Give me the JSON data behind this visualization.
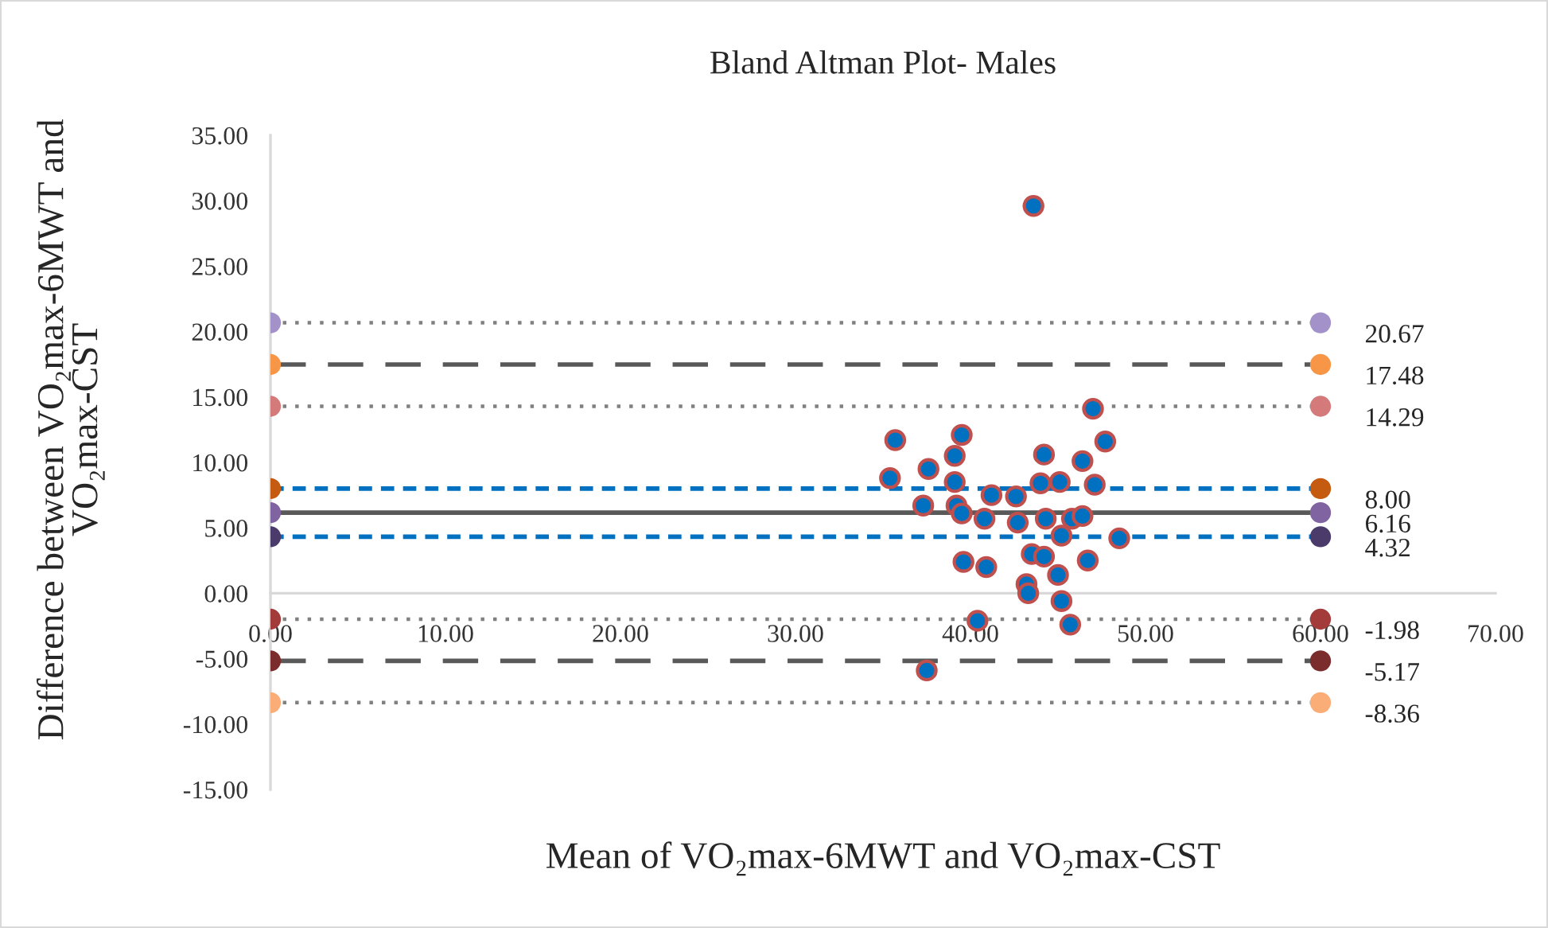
{
  "chart_data": {
    "type": "scatter",
    "title": "Bland Altman Plot- Males",
    "xlabel": "Mean of VO₂max-6MWT and VO₂max-CST",
    "ylabel": "Difference between VO₂max-6MWT and\nVO₂max-CST",
    "xlim": [
      0,
      70
    ],
    "ylim": [
      -15,
      35
    ],
    "xticks": [
      {
        "value": 0,
        "label": "0.00"
      },
      {
        "value": 10,
        "label": "10.00"
      },
      {
        "value": 20,
        "label": "20.00"
      },
      {
        "value": 30,
        "label": "30.00"
      },
      {
        "value": 40,
        "label": "40.00"
      },
      {
        "value": 50,
        "label": "50.00"
      },
      {
        "value": 60,
        "label": "60.00"
      },
      {
        "value": 70,
        "label": "70.00"
      }
    ],
    "yticks": [
      {
        "value": -15,
        "label": "-15.00"
      },
      {
        "value": -10,
        "label": "-10.00"
      },
      {
        "value": -5,
        "label": "-5.00"
      },
      {
        "value": 0,
        "label": "0.00"
      },
      {
        "value": 5,
        "label": "5.00"
      },
      {
        "value": 10,
        "label": "10.00"
      },
      {
        "value": 15,
        "label": "15.00"
      },
      {
        "value": 20,
        "label": "20.00"
      },
      {
        "value": 25,
        "label": "25.00"
      },
      {
        "value": 30,
        "label": "30.00"
      },
      {
        "value": 35,
        "label": "35.00"
      }
    ],
    "grid": false,
    "legend": false,
    "series": [
      {
        "color": "#0070c0",
        "marker": "circle",
        "x": [
          43.6,
          47.0,
          35.7,
          39.5,
          47.7,
          39.1,
          44.2,
          46.4,
          37.6,
          35.4,
          39.1,
          44.0,
          45.1,
          47.1,
          41.2,
          42.6,
          37.3,
          39.2,
          39.5,
          40.8,
          42.7,
          44.3,
          45.8,
          46.4,
          45.2,
          48.5,
          43.5,
          44.2,
          46.7,
          39.6,
          40.9,
          45.0,
          43.2,
          43.3,
          45.2,
          40.4,
          45.7,
          37.5
        ],
        "values": [
          29.6,
          14.1,
          11.7,
          12.1,
          11.6,
          10.5,
          10.6,
          10.1,
          9.5,
          8.8,
          8.5,
          8.4,
          8.5,
          8.3,
          7.5,
          7.4,
          6.7,
          6.7,
          6.1,
          5.7,
          5.4,
          5.7,
          5.7,
          5.9,
          4.4,
          4.2,
          3.0,
          2.8,
          2.5,
          2.4,
          2.0,
          1.4,
          0.7,
          0.0,
          -0.6,
          -2.1,
          -2.4,
          -5.9
        ]
      },
      {
        "type": "line",
        "color": "#808080",
        "line_style": "dotted",
        "marker": "circle",
        "colors": [
          "#a392c9",
          "#a392c9"
        ],
        "x": [
          0,
          60
        ],
        "values": [
          20.67,
          20.67
        ],
        "value_labels": [
          null,
          "20.67"
        ]
      },
      {
        "type": "line",
        "color": "#595959",
        "line_style": "dashed",
        "marker": "circle",
        "colors": [
          "#f79646",
          "#f79646"
        ],
        "x": [
          0,
          60
        ],
        "values": [
          17.48,
          17.48
        ],
        "value_labels": [
          null,
          "17.48"
        ]
      },
      {
        "type": "line",
        "color": "#808080",
        "line_style": "dotted",
        "marker": "circle",
        "colors": [
          "#d47a7a",
          "#d47a7a"
        ],
        "x": [
          0,
          60
        ],
        "values": [
          14.29,
          14.29
        ],
        "value_labels": [
          null,
          "14.29"
        ]
      },
      {
        "type": "line",
        "color": "#0070c0",
        "line_style": "dashed",
        "marker": "circle",
        "colors": [
          "#c55a11",
          "#c55a11"
        ],
        "x": [
          0,
          60
        ],
        "values": [
          8.0,
          8.0
        ],
        "value_labels": [
          null,
          "8.00"
        ]
      },
      {
        "type": "line",
        "color": "#595959",
        "line_style": "solid",
        "marker": "circle",
        "colors": [
          "#8064a2",
          "#8064a2"
        ],
        "x": [
          0,
          60
        ],
        "values": [
          6.16,
          6.16
        ],
        "value_labels": [
          null,
          "6.16"
        ]
      },
      {
        "type": "line",
        "color": "#0070c0",
        "line_style": "dashed",
        "marker": "circle",
        "colors": [
          "#4b3b6b",
          "#4b3b6b"
        ],
        "x": [
          0,
          60
        ],
        "values": [
          4.32,
          4.32
        ],
        "value_labels": [
          null,
          "4.32"
        ]
      },
      {
        "type": "line",
        "color": "#808080",
        "line_style": "dotted",
        "marker": "circle",
        "colors": [
          "#a33b3b",
          "#a33b3b"
        ],
        "x": [
          0,
          60
        ],
        "values": [
          -1.98,
          -1.98
        ],
        "value_labels": [
          null,
          "-1.98"
        ]
      },
      {
        "type": "line",
        "color": "#595959",
        "line_style": "dashed",
        "marker": "circle",
        "colors": [
          "#7b2c2c",
          "#7b2c2c"
        ],
        "x": [
          0,
          60
        ],
        "values": [
          -5.17,
          -5.17
        ],
        "value_labels": [
          null,
          "-5.17"
        ]
      },
      {
        "type": "line",
        "color": "#808080",
        "line_style": "dotted",
        "marker": "circle",
        "colors": [
          "#fbad78",
          "#fbad78"
        ],
        "x": [
          0,
          60
        ],
        "values": [
          -8.36,
          -8.36
        ],
        "value_labels": [
          null,
          "-8.36"
        ]
      }
    ]
  }
}
